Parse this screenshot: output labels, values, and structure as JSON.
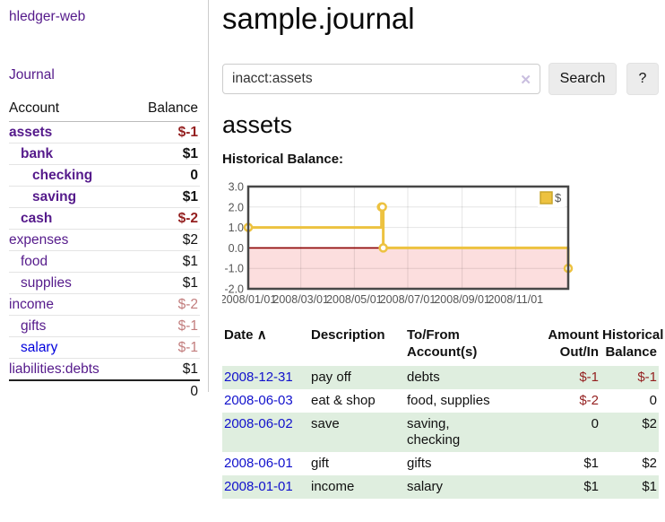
{
  "app": {
    "title": "hledger-web"
  },
  "nav": {
    "journal_label": "Journal"
  },
  "sidebar": {
    "header": {
      "account": "Account",
      "balance": "Balance"
    },
    "accounts": [
      {
        "name": "assets",
        "level": 0,
        "bold": true,
        "balance": "$-1",
        "balance_class": "neg"
      },
      {
        "name": "bank",
        "level": 1,
        "bold": true,
        "balance": "$1",
        "balance_class": ""
      },
      {
        "name": "checking",
        "level": 2,
        "bold": true,
        "balance": "0",
        "balance_class": ""
      },
      {
        "name": "saving",
        "level": 2,
        "bold": true,
        "balance": "$1",
        "balance_class": ""
      },
      {
        "name": "cash",
        "level": 1,
        "bold": true,
        "balance": "$-2",
        "balance_class": "neg"
      },
      {
        "name": "expenses",
        "level": 0,
        "bold": false,
        "balance": "$2",
        "balance_class": "plain"
      },
      {
        "name": "food",
        "level": 1,
        "bold": false,
        "balance": "$1",
        "balance_class": "plain"
      },
      {
        "name": "supplies",
        "level": 1,
        "bold": false,
        "balance": "$1",
        "balance_class": "plain"
      },
      {
        "name": "income",
        "level": 0,
        "bold": false,
        "balance": "$-2",
        "balance_class": "neg-faded"
      },
      {
        "name": "gifts",
        "level": 1,
        "bold": false,
        "balance": "$-1",
        "balance_class": "neg-faded"
      },
      {
        "name": "salary",
        "level": 1,
        "bold": false,
        "balance": "$-1",
        "balance_class": "neg-faded",
        "link_class": "blue"
      },
      {
        "name": "liabilities:debts",
        "level": 0,
        "bold": false,
        "balance": "$1",
        "balance_class": "plain"
      }
    ],
    "total": "0"
  },
  "header": {
    "title": "sample.journal"
  },
  "search": {
    "value": "inacct:assets",
    "clear_icon": "✕",
    "button_label": "Search",
    "help_label": "?"
  },
  "account_page": {
    "title": "assets",
    "chart_label": "Historical Balance:"
  },
  "chart_data": {
    "type": "line",
    "title": "Historical Balance",
    "step": true,
    "series": [
      {
        "name": "$",
        "color": "#edc240",
        "points": [
          [
            "2008-01-01",
            1
          ],
          [
            "2008-06-01",
            2
          ],
          [
            "2008-06-02",
            2
          ],
          [
            "2008-06-03",
            0
          ],
          [
            "2008-12-31",
            -1
          ]
        ]
      }
    ],
    "ylim": [
      -2,
      3
    ],
    "yticks": [
      "3.0",
      "2.0",
      "1.0",
      "0.0",
      "-1.0",
      "-2.0"
    ],
    "ytick_values": [
      3,
      2,
      1,
      0,
      -1,
      -2
    ],
    "xrange": [
      "2008-01-01",
      "2008-12-31"
    ],
    "xticks": [
      "2008/01/01",
      "2008/03/01",
      "2008/05/01",
      "2008/07/01",
      "2008/09/01",
      "2008/11/01"
    ],
    "xtick_dates": [
      "2008-01-01",
      "2008-03-01",
      "2008-05-01",
      "2008-07-01",
      "2008-09-01",
      "2008-11-01"
    ],
    "legend_position": "top-right",
    "grid": true,
    "zero_line": true
  },
  "register": {
    "headers": {
      "date": "Date",
      "sort_icon": "∧",
      "description": "Description",
      "tofrom_line1": "To/From",
      "tofrom_line2": "Account(s)",
      "amount_line1": "Amount",
      "amount_line2": "Out/In",
      "balance_line1": "Historical",
      "balance_line2": "Balance"
    },
    "rows": [
      {
        "date": "2008-12-31",
        "description": "pay off",
        "accounts": "debts",
        "amount": "$-1",
        "amount_negative": true,
        "balance": "$-1",
        "balance_negative": true,
        "shaded": true
      },
      {
        "date": "2008-06-03",
        "description": "eat & shop",
        "accounts": "food, supplies",
        "amount": "$-2",
        "amount_negative": true,
        "balance": "0",
        "balance_negative": false,
        "shaded": false
      },
      {
        "date": "2008-06-02",
        "description": "save",
        "accounts": "saving, checking",
        "amount": "0",
        "amount_negative": false,
        "balance": "$2",
        "balance_negative": false,
        "shaded": true
      },
      {
        "date": "2008-06-01",
        "description": "gift",
        "accounts": "gifts",
        "amount": "$1",
        "amount_negative": false,
        "balance": "$2",
        "balance_negative": false,
        "shaded": false
      },
      {
        "date": "2008-01-01",
        "description": "income",
        "accounts": "salary",
        "amount": "$1",
        "amount_negative": false,
        "balance": "$1",
        "balance_negative": false,
        "shaded": true
      }
    ]
  },
  "colors": {
    "link_purple": "#551a8b",
    "link_blue": "#0000dd",
    "date_link_blue": "#1111cc",
    "negative_strong": "#941f1f",
    "negative_faded": "#c27d7d",
    "row_green": "#dfeedf",
    "chart_line_yellow": "#edc240",
    "chart_negative_fill_pink": "#fcdede",
    "chart_zero_line_red": "#8b0000",
    "axis_text_gray": "#545454"
  }
}
